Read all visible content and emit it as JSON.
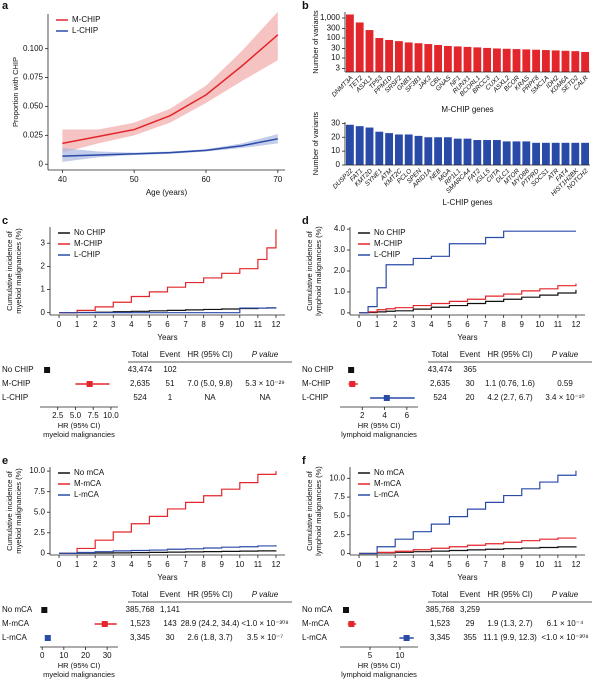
{
  "chart_data": [
    {
      "type": "line",
      "panel": "a",
      "xlabel": "Age (years)",
      "ylabel": [
        "Proportion with CHIP"
      ],
      "legend": "upper left",
      "x": [
        40,
        45,
        50,
        55,
        60,
        65,
        70
      ],
      "xlim": [
        38,
        71
      ],
      "xticks": [
        40,
        50,
        60,
        70
      ],
      "ylim": [
        -0.005,
        0.13
      ],
      "yticks": [
        0,
        0.025,
        {
          "value": 0.05,
          "label": "0.050"
        },
        0.075,
        {
          "value": 0.1,
          "label": "0.100"
        }
      ],
      "series": [
        {
          "name": "M-CHIP",
          "color": "#e3262b",
          "band": "#f2a9a9",
          "values": [
            0.018,
            0.024,
            0.03,
            0.042,
            0.06,
            0.085,
            0.112
          ],
          "lower": [
            0.01,
            0.018,
            0.025,
            0.036,
            0.053,
            0.072,
            0.09
          ],
          "upper": [
            0.03,
            0.03,
            0.036,
            0.048,
            0.068,
            0.098,
            0.132
          ]
        },
        {
          "name": "L-CHIP",
          "color": "#2a4aa8",
          "band": "#a9b6e0",
          "values": [
            0.007,
            0.008,
            0.009,
            0.01,
            0.012,
            0.016,
            0.022
          ],
          "lower": [
            0.002,
            0.006,
            0.008,
            0.009,
            0.011,
            0.014,
            0.018
          ],
          "upper": [
            0.014,
            0.011,
            0.01,
            0.011,
            0.013,
            0.018,
            0.026
          ]
        }
      ]
    },
    {
      "type": "bar",
      "panel": "b",
      "log": true,
      "color": "#e3262b",
      "xlabel": "M-CHIP genes",
      "ylabel": [
        "Number of variants"
      ],
      "categories": [
        "DNMT3A",
        "TET2",
        "ASXL1",
        "TP53",
        "PPM1D",
        "SRSF2",
        "GNB1",
        "SF3B1",
        "JAK2",
        "CBL",
        "GNAS",
        "NF1",
        "RUNX1",
        "BCORL1",
        "BRCC3",
        "CUX1",
        "ASXL2",
        "BCOR",
        "KRAS",
        "PRPF8",
        "SMC1A",
        "IDH2",
        "KDM6A",
        "SETD2",
        "CALR"
      ],
      "values": [
        1500,
        600,
        250,
        100,
        80,
        70,
        60,
        55,
        50,
        45,
        40,
        38,
        36,
        34,
        32,
        30,
        29,
        28,
        27,
        26,
        25,
        24,
        23,
        22,
        20
      ],
      "ylim": [
        2,
        2000
      ],
      "yticks": [
        3,
        10,
        30,
        100,
        300,
        {
          "value": 1000,
          "label": "1,000"
        }
      ]
    },
    {
      "type": "bar",
      "log": false,
      "color": "#2a4aa8",
      "xlabel": "L-CHIP genes",
      "ylabel": [
        "Number of variants"
      ],
      "categories": [
        "DUSP22",
        "FAT1",
        "KMT2D",
        "SYNE1",
        "ATM",
        "KMT2C",
        "PCLO",
        "SPEN",
        "ARID1A",
        "NEB",
        "MGA",
        "RP1L1",
        "SMARCA4",
        "FAT2",
        "IGLL5",
        "CIITA",
        "DLC1",
        "MTOR",
        "MYD88",
        "PTPRD",
        "SOCS1",
        "ATR",
        "FAT4",
        "HIST1H2BK",
        "NOTCH2"
      ],
      "values": [
        29,
        28,
        27,
        24,
        23,
        22,
        22,
        21,
        20,
        20,
        20,
        19,
        19,
        18,
        18,
        18,
        17,
        17,
        17,
        16,
        16,
        16,
        16,
        16,
        16
      ],
      "ylim": [
        0,
        31
      ],
      "yticks": [
        0,
        10,
        20,
        30
      ]
    },
    {
      "type": "step",
      "panel": "c",
      "xlabel": "Years",
      "ylabel": [
        "Cumulative incidence of",
        "myeloid malignancies (%)"
      ],
      "legend": "upper left",
      "x": [
        0,
        1,
        2,
        3,
        4,
        5,
        6,
        7,
        8,
        9,
        10,
        11,
        11.5,
        12
      ],
      "xlim": [
        -0.5,
        12.5
      ],
      "xticks": [
        0,
        1,
        2,
        3,
        4,
        5,
        6,
        7,
        8,
        9,
        10,
        11,
        12
      ],
      "ylim": [
        -0.1,
        3.7
      ],
      "yticks": [
        0,
        1,
        2,
        3
      ],
      "series": [
        {
          "name": "No CHIP",
          "color": "#111111",
          "values": [
            0,
            0.01,
            0.02,
            0.04,
            0.06,
            0.08,
            0.1,
            0.12,
            0.14,
            0.16,
            0.18,
            0.2,
            0.21,
            0.22
          ]
        },
        {
          "name": "M-CHIP",
          "color": "#e3262b",
          "values": [
            0,
            0.1,
            0.25,
            0.45,
            0.7,
            0.9,
            1.1,
            1.3,
            1.5,
            1.7,
            1.9,
            2.3,
            2.8,
            3.6
          ]
        },
        {
          "name": "L-CHIP",
          "color": "#2a4aa8",
          "values": [
            0,
            0,
            0,
            0,
            0,
            0,
            0,
            0,
            0,
            0,
            0.2,
            0.2,
            0.2,
            0.2
          ]
        }
      ],
      "forest": {
        "headers": [
          "Total",
          "Event",
          "HR (95% CI)",
          "P value"
        ],
        "xlabel": [
          "HR (95% CI)",
          "myeloid malignancies"
        ],
        "xlim": [
          0,
          11
        ],
        "xticks": [
          2.5,
          {
            "value": 5,
            "label": "5.0"
          },
          7.5,
          {
            "value": 10,
            "label": "10.0"
          }
        ],
        "rows": [
          {
            "label": "No CHIP",
            "total": "43,474",
            "event": "102",
            "hr": 1
          },
          {
            "label": "M-CHIP",
            "total": "2,635",
            "event": "51",
            "hr": 7.0,
            "ci": [
              5.0,
              9.8
            ],
            "hr_label": "7.0 (5.0, 9.8)",
            "p_label": "5.3 × 10⁻²⁹"
          },
          {
            "label": "L-CHIP",
            "total": "524",
            "event": "1",
            "hr_label": "NA",
            "p_label": "NA"
          }
        ]
      }
    },
    {
      "type": "step",
      "panel": "d",
      "xlabel": "Years",
      "ylabel": [
        "Cumulative incidence of",
        "lymphoid malignancies (%)"
      ],
      "legend": "upper left",
      "x": [
        0,
        0.5,
        1,
        1.5,
        2,
        3,
        4,
        5,
        6,
        7,
        8,
        9,
        10,
        11,
        12
      ],
      "xlim": [
        -0.5,
        12.5
      ],
      "xticks": [
        0,
        1,
        2,
        3,
        4,
        5,
        6,
        7,
        8,
        9,
        10,
        11,
        12
      ],
      "ylim": [
        -0.1,
        4.1
      ],
      "yticks": [
        0,
        {
          "value": 1,
          "label": "1.0"
        },
        {
          "value": 2,
          "label": "2.0"
        },
        {
          "value": 3,
          "label": "3.0"
        },
        {
          "value": 4,
          "label": "4.0"
        }
      ],
      "series": [
        {
          "name": "No CHIP",
          "color": "#111111",
          "values": [
            0,
            0.02,
            0.05,
            0.08,
            0.1,
            0.18,
            0.27,
            0.35,
            0.45,
            0.55,
            0.65,
            0.75,
            0.85,
            0.95,
            1.1
          ]
        },
        {
          "name": "M-CHIP",
          "color": "#e3262b",
          "values": [
            0,
            0.05,
            0.15,
            0.2,
            0.25,
            0.35,
            0.45,
            0.55,
            0.65,
            0.8,
            0.9,
            1.05,
            1.15,
            1.3,
            1.4
          ]
        },
        {
          "name": "L-CHIP",
          "color": "#2a4aa8",
          "values": [
            0,
            0.3,
            1.2,
            2.3,
            2.3,
            2.6,
            2.7,
            3.3,
            3.3,
            3.6,
            3.9,
            3.9,
            3.9,
            3.9,
            3.9
          ]
        }
      ],
      "forest": {
        "headers": [
          "Total",
          "Event",
          "HR (95% CI)",
          "P value"
        ],
        "xlabel": [
          "HR (95% CI)",
          "lymphoid malignancies"
        ],
        "xlim": [
          0,
          7
        ],
        "xticks": [
          2,
          4,
          6
        ],
        "rows": [
          {
            "label": "No CHIP",
            "total": "43,474",
            "event": "365",
            "hr": 1
          },
          {
            "label": "M-CHIP",
            "total": "2,635",
            "event": "30",
            "hr": 1.1,
            "ci": [
              0.76,
              1.6
            ],
            "hr_label": "1.1 (0.76, 1.6)",
            "p_label": "0.59"
          },
          {
            "label": "L-CHIP",
            "total": "524",
            "event": "20",
            "hr": 4.2,
            "ci": [
              2.7,
              6.7
            ],
            "hr_label": "4.2 (2.7, 6.7)",
            "p_label": "3.4 × 10⁻¹⁰"
          }
        ]
      }
    },
    {
      "type": "step",
      "panel": "e",
      "xlabel": "Years",
      "ylabel": [
        "Cumulative incidence of",
        "myeloid malignancies (%)"
      ],
      "legend": "upper left",
      "x": [
        0,
        1,
        2,
        3,
        4,
        5,
        6,
        7,
        8,
        9,
        10,
        11,
        12
      ],
      "xlim": [
        -0.5,
        12.5
      ],
      "xticks": [
        0,
        1,
        2,
        3,
        4,
        5,
        6,
        7,
        8,
        9,
        10,
        11,
        12
      ],
      "ylim": [
        -0.2,
        10.5
      ],
      "yticks": [
        0,
        2.5,
        {
          "value": 5,
          "label": "5.0"
        },
        7.5,
        {
          "value": 10,
          "label": "10.0"
        }
      ],
      "series": [
        {
          "name": "No mCA",
          "color": "#111111",
          "values": [
            0,
            0.02,
            0.04,
            0.06,
            0.09,
            0.12,
            0.15,
            0.18,
            0.21,
            0.24,
            0.27,
            0.3,
            0.33
          ]
        },
        {
          "name": "M-mCA",
          "color": "#e3262b",
          "values": [
            0,
            0.6,
            1.6,
            2.6,
            3.6,
            4.5,
            5.4,
            6.2,
            7.0,
            7.8,
            8.6,
            9.6,
            10.0
          ]
        },
        {
          "name": "L-mCA",
          "color": "#2a4aa8",
          "values": [
            0,
            0.1,
            0.2,
            0.3,
            0.35,
            0.4,
            0.5,
            0.55,
            0.65,
            0.75,
            0.8,
            0.9,
            1.0
          ]
        }
      ],
      "forest": {
        "headers": [
          "Total",
          "Event",
          "HR (95% CI)",
          "P value"
        ],
        "xlabel": [
          "HR (95% CI)",
          "myeloid malignancies"
        ],
        "xlim": [
          -1,
          35
        ],
        "xticks": [
          0,
          10,
          20,
          30
        ],
        "rows": [
          {
            "label": "No mCA",
            "total": "385,768",
            "event": "1,141",
            "hr": 1
          },
          {
            "label": "M-mCA",
            "total": "1,523",
            "event": "143",
            "hr": 28.9,
            "ci": [
              24.2,
              34.4
            ],
            "hr_label": "28.9 (24.2, 34.4)",
            "p_label": "<1.0 × 10⁻³⁰⁸"
          },
          {
            "label": "L-mCA",
            "total": "3,345",
            "event": "30",
            "hr": 2.6,
            "ci": [
              1.8,
              3.7
            ],
            "hr_label": "2.6 (1.8, 3.7)",
            "p_label": "3.5 × 10⁻⁷"
          }
        ]
      }
    },
    {
      "type": "step",
      "panel": "f",
      "xlabel": "Years",
      "ylabel": [
        "Cumulative incidence of",
        "lymphoid malignancies (%)"
      ],
      "legend": "upper left",
      "x": [
        0,
        1,
        2,
        3,
        4,
        5,
        6,
        7,
        8,
        9,
        10,
        11,
        12
      ],
      "xlim": [
        -0.5,
        12.5
      ],
      "xticks": [
        0,
        1,
        2,
        3,
        4,
        5,
        6,
        7,
        8,
        9,
        10,
        11,
        12
      ],
      "ylim": [
        -0.2,
        11.5
      ],
      "yticks": [
        0,
        2.5,
        {
          "value": 5,
          "label": "5.0"
        },
        7.5,
        {
          "value": 10,
          "label": "10.0"
        }
      ],
      "series": [
        {
          "name": "No mCA",
          "color": "#111111",
          "values": [
            0,
            0.08,
            0.16,
            0.24,
            0.32,
            0.4,
            0.48,
            0.56,
            0.64,
            0.72,
            0.8,
            0.88,
            0.96
          ]
        },
        {
          "name": "M-mCA",
          "color": "#e3262b",
          "values": [
            0,
            0.15,
            0.3,
            0.5,
            0.7,
            0.9,
            1.1,
            1.3,
            1.5,
            1.7,
            1.9,
            2.05,
            2.1
          ]
        },
        {
          "name": "L-mCA",
          "color": "#2a4aa8",
          "values": [
            0,
            0.9,
            1.9,
            2.9,
            3.9,
            4.9,
            5.9,
            6.8,
            7.7,
            8.6,
            9.5,
            10.4,
            11.0
          ]
        }
      ],
      "forest": {
        "headers": [
          "Total",
          "Event",
          "HR (95% CI)",
          "P value"
        ],
        "xlabel": [
          "HR (95% CI)",
          "lymphoid malignancies"
        ],
        "xlim": [
          0,
          13
        ],
        "xticks": [
          5,
          10
        ],
        "rows": [
          {
            "label": "No mCA",
            "total": "385,768",
            "event": "3,259",
            "hr": 1
          },
          {
            "label": "M-mCA",
            "total": "1,523",
            "event": "29",
            "hr": 1.9,
            "ci": [
              1.3,
              2.7
            ],
            "hr_label": "1.9 (1.3, 2.7)",
            "p_label": "6.1 × 10⁻⁴"
          },
          {
            "label": "L-mCA",
            "total": "3,345",
            "event": "355",
            "hr": 11.1,
            "ci": [
              9.9,
              12.3
            ],
            "hr_label": "11.1 (9.9, 12.3)",
            "p_label": "<1.0 × 10⁻³⁰⁸"
          }
        ]
      }
    }
  ]
}
